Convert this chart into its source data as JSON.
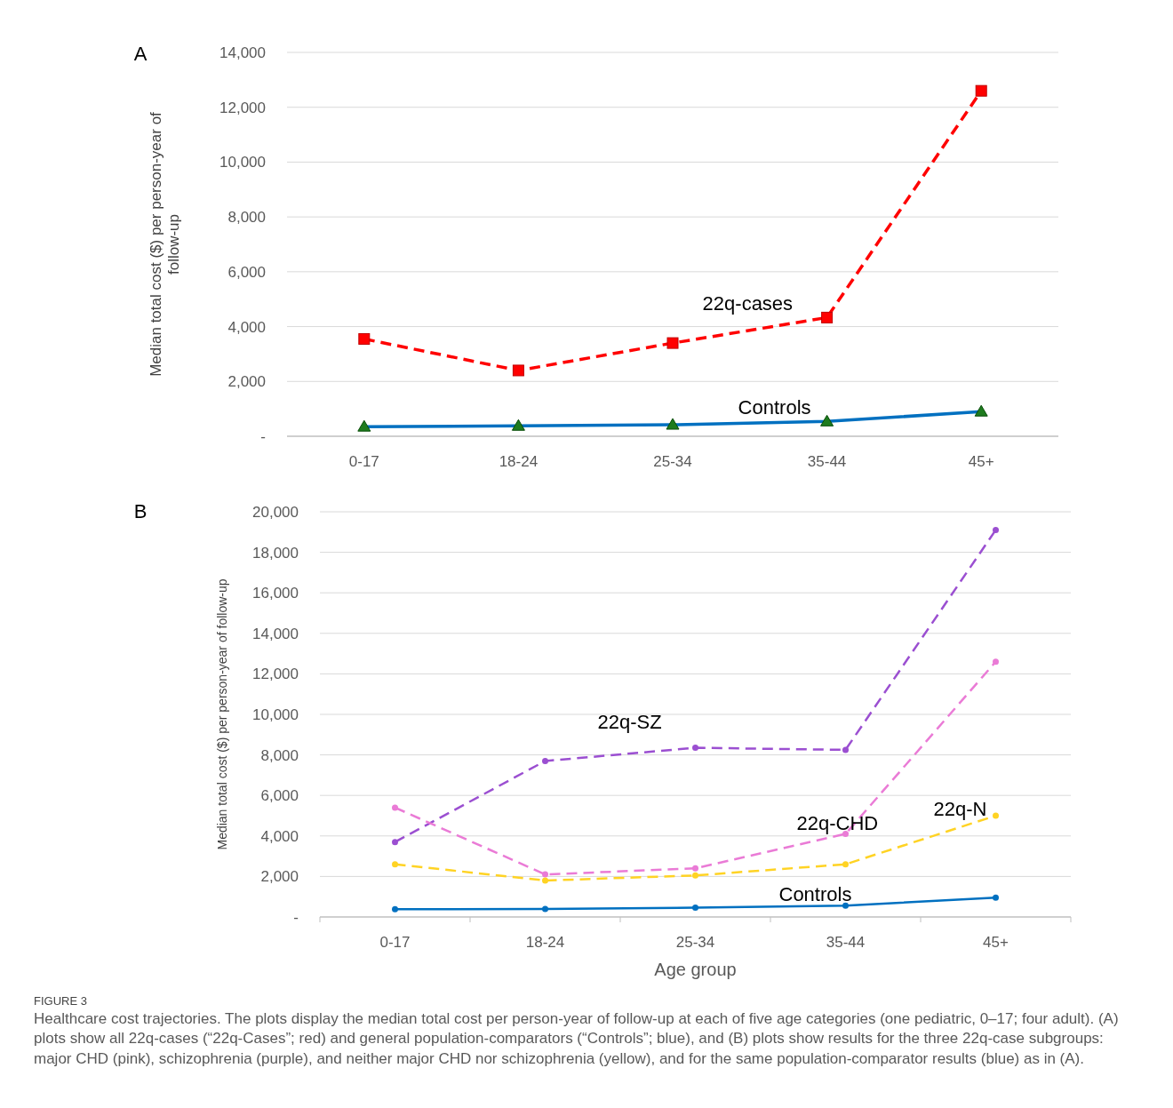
{
  "chart_data": [
    {
      "type": "line",
      "title": "A",
      "ylabel": "Median total cost ($) per person-year of follow-up",
      "categories": [
        "0-17",
        "18-24",
        "25-34",
        "35-44",
        "45+"
      ],
      "series": [
        {
          "name": "22q-cases",
          "color": "#ff0000",
          "values": [
            3550,
            2400,
            3400,
            4330,
            12600
          ],
          "marker": "square",
          "line_style": "dashed"
        },
        {
          "name": "Controls",
          "color": "#0070c0",
          "values": [
            350,
            380,
            420,
            540,
            900
          ],
          "marker": "triangle",
          "line_style": "solid"
        }
      ],
      "ylim": [
        0,
        14000
      ],
      "yticks": [
        {
          "value": 0,
          "label": "-"
        },
        {
          "value": 2000,
          "label": "2,000"
        },
        {
          "value": 4000,
          "label": "4,000"
        },
        {
          "value": 6000,
          "label": "6,000"
        },
        {
          "value": 8000,
          "label": "8,000"
        },
        {
          "value": 10000,
          "label": "10,000"
        },
        {
          "value": 12000,
          "label": "12,000"
        },
        {
          "value": 14000,
          "label": "14,000"
        }
      ],
      "grid": "y"
    },
    {
      "type": "line",
      "title": "B",
      "xlabel": "Age group",
      "ylabel": "Median total cost ($) per person-year of follow-up",
      "categories": [
        "0-17",
        "18-24",
        "25-34",
        "35-44",
        "45+"
      ],
      "series": [
        {
          "name": "22q-SZ",
          "color": "#9b4fd1",
          "values": [
            3700,
            7700,
            8350,
            8250,
            19100
          ],
          "marker": "circle",
          "line_style": "dashed"
        },
        {
          "name": "22q-CHD",
          "color": "#ea7bd6",
          "values": [
            5400,
            2100,
            2400,
            4100,
            12600
          ],
          "marker": "circle",
          "line_style": "dashed"
        },
        {
          "name": "22q-N",
          "color": "#ffd324",
          "values": [
            2600,
            1800,
            2050,
            2600,
            5000
          ],
          "marker": "circle",
          "line_style": "dashed"
        },
        {
          "name": "Controls",
          "color": "#0070c0",
          "values": [
            380,
            400,
            460,
            560,
            950
          ],
          "marker": "circle",
          "line_style": "solid"
        }
      ],
      "ylim": [
        0,
        20000
      ],
      "yticks": [
        {
          "value": 0,
          "label": "-"
        },
        {
          "value": 2000,
          "label": "2,000"
        },
        {
          "value": 4000,
          "label": "4,000"
        },
        {
          "value": 6000,
          "label": "6,000"
        },
        {
          "value": 8000,
          "label": "8,000"
        },
        {
          "value": 10000,
          "label": "10,000"
        },
        {
          "value": 12000,
          "label": "12,000"
        },
        {
          "value": 14000,
          "label": "14,000"
        },
        {
          "value": 16000,
          "label": "16,000"
        },
        {
          "value": 18000,
          "label": "18,000"
        },
        {
          "value": 20000,
          "label": "20,000"
        }
      ],
      "grid": "y",
      "annotations": [
        "FIGURE 3",
        "Healthcare cost trajectories. The plots display the median total cost per person-year of follow-up at each of five age categories (one pediatric, 0–17; four adult). (A) plots show all 22q-cases (“22q-Cases”; red) and general population-comparators (“Controls”; blue), and (B) plots show results for the three 22q-case subgroups: major CHD (pink), schizophrenia (purple), and neither major CHD nor schizophrenia (yellow), and for the same population-comparator results (blue) as in (A)."
      ]
    }
  ]
}
